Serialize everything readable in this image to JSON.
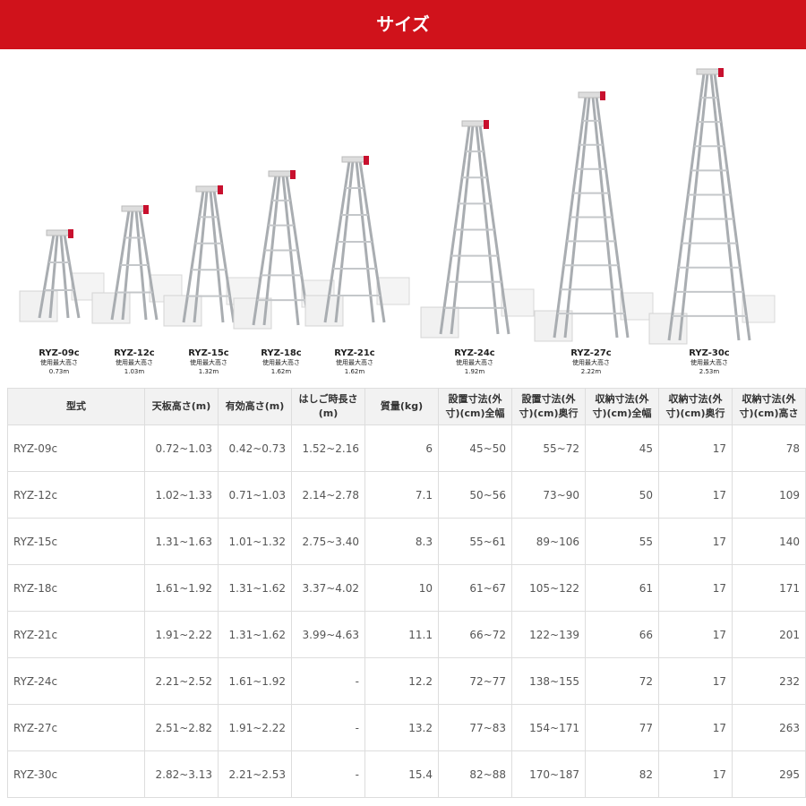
{
  "header": {
    "title": "サイズ"
  },
  "models": [
    {
      "name": "RYZ-09c",
      "label": "使用最大高さ",
      "height": "0.73m"
    },
    {
      "name": "RYZ-12c",
      "label": "使用最大高さ",
      "height": "1.03m"
    },
    {
      "name": "RYZ-15c",
      "label": "使用最大高さ",
      "height": "1.32m"
    },
    {
      "name": "RYZ-18c",
      "label": "使用最大高さ",
      "height": "1.62m"
    },
    {
      "name": "RYZ-21c",
      "label": "使用最大高さ",
      "height": "1.62m"
    },
    {
      "name": "RYZ-24c",
      "label": "使用最大高さ",
      "height": "1.92m"
    },
    {
      "name": "RYZ-27c",
      "label": "使用最大高さ",
      "height": "2.22m"
    },
    {
      "name": "RYZ-30c",
      "label": "使用最大高さ",
      "height": "2.53m"
    }
  ],
  "table": {
    "headers": [
      "型式",
      "天板高さ(m)",
      "有効高さ(m)",
      "はしご時長さ(m)",
      "質量(kg)",
      "設置寸法(外寸)(cm)全幅",
      "設置寸法(外寸)(cm)奥行",
      "収納寸法(外寸)(cm)全幅",
      "収納寸法(外寸)(cm)奥行",
      "収納寸法(外寸)(cm)高さ"
    ],
    "rows": [
      [
        "RYZ-09c",
        "0.72~1.03",
        "0.42~0.73",
        "1.52~2.16",
        "6",
        "45~50",
        "55~72",
        "45",
        "17",
        "78"
      ],
      [
        "RYZ-12c",
        "1.02~1.33",
        "0.71~1.03",
        "2.14~2.78",
        "7.1",
        "50~56",
        "73~90",
        "50",
        "17",
        "109"
      ],
      [
        "RYZ-15c",
        "1.31~1.63",
        "1.01~1.32",
        "2.75~3.40",
        "8.3",
        "55~61",
        "89~106",
        "55",
        "17",
        "140"
      ],
      [
        "RYZ-18c",
        "1.61~1.92",
        "1.31~1.62",
        "3.37~4.02",
        "10",
        "61~67",
        "105~122",
        "61",
        "17",
        "171"
      ],
      [
        "RYZ-21c",
        "1.91~2.22",
        "1.31~1.62",
        "3.99~4.63",
        "11.1",
        "66~72",
        "122~139",
        "66",
        "17",
        "201"
      ],
      [
        "RYZ-24c",
        "2.21~2.52",
        "1.61~1.92",
        "-",
        "12.2",
        "72~77",
        "138~155",
        "72",
        "17",
        "232"
      ],
      [
        "RYZ-27c",
        "2.51~2.82",
        "1.91~2.22",
        "-",
        "13.2",
        "77~83",
        "154~171",
        "77",
        "17",
        "263"
      ],
      [
        "RYZ-30c",
        "2.82~3.13",
        "2.21~2.53",
        "-",
        "15.4",
        "82~88",
        "170~187",
        "82",
        "17",
        "295"
      ]
    ]
  }
}
